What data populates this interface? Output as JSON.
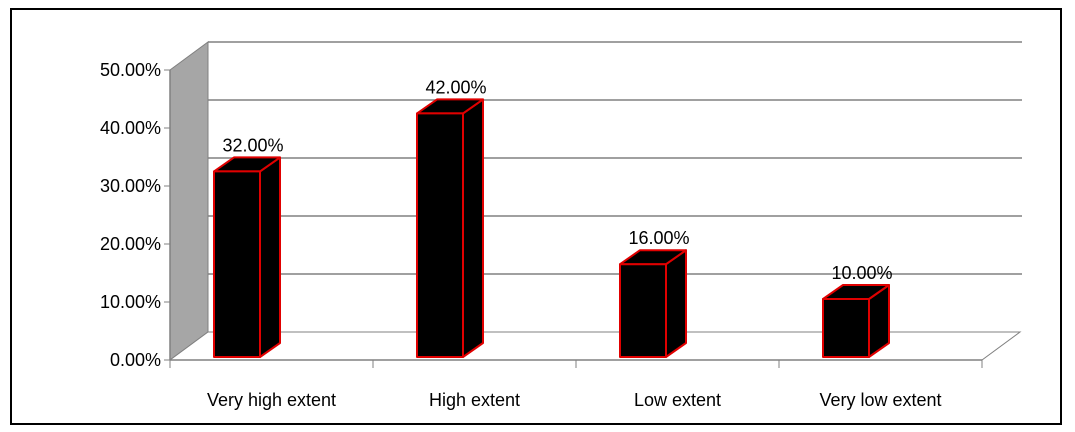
{
  "chart_data": {
    "type": "bar",
    "style": "3d-column",
    "categories": [
      "Very high extent",
      "High extent",
      "Low extent",
      "Very low extent"
    ],
    "values": [
      32,
      42,
      16,
      10
    ],
    "data_labels": [
      "32.00%",
      "42.00%",
      "16.00%",
      "10.00%"
    ],
    "y_ticks": [
      "0.00%",
      "10.00%",
      "20.00%",
      "30.00%",
      "40.00%",
      "50.00%"
    ],
    "ylim": [
      0,
      50
    ],
    "grid": true,
    "legend": "none",
    "colors": {
      "bar_fill": "#000000",
      "bar_edge": "#e00000",
      "wall": "#a6a6a6",
      "grid": "#808080"
    }
  }
}
